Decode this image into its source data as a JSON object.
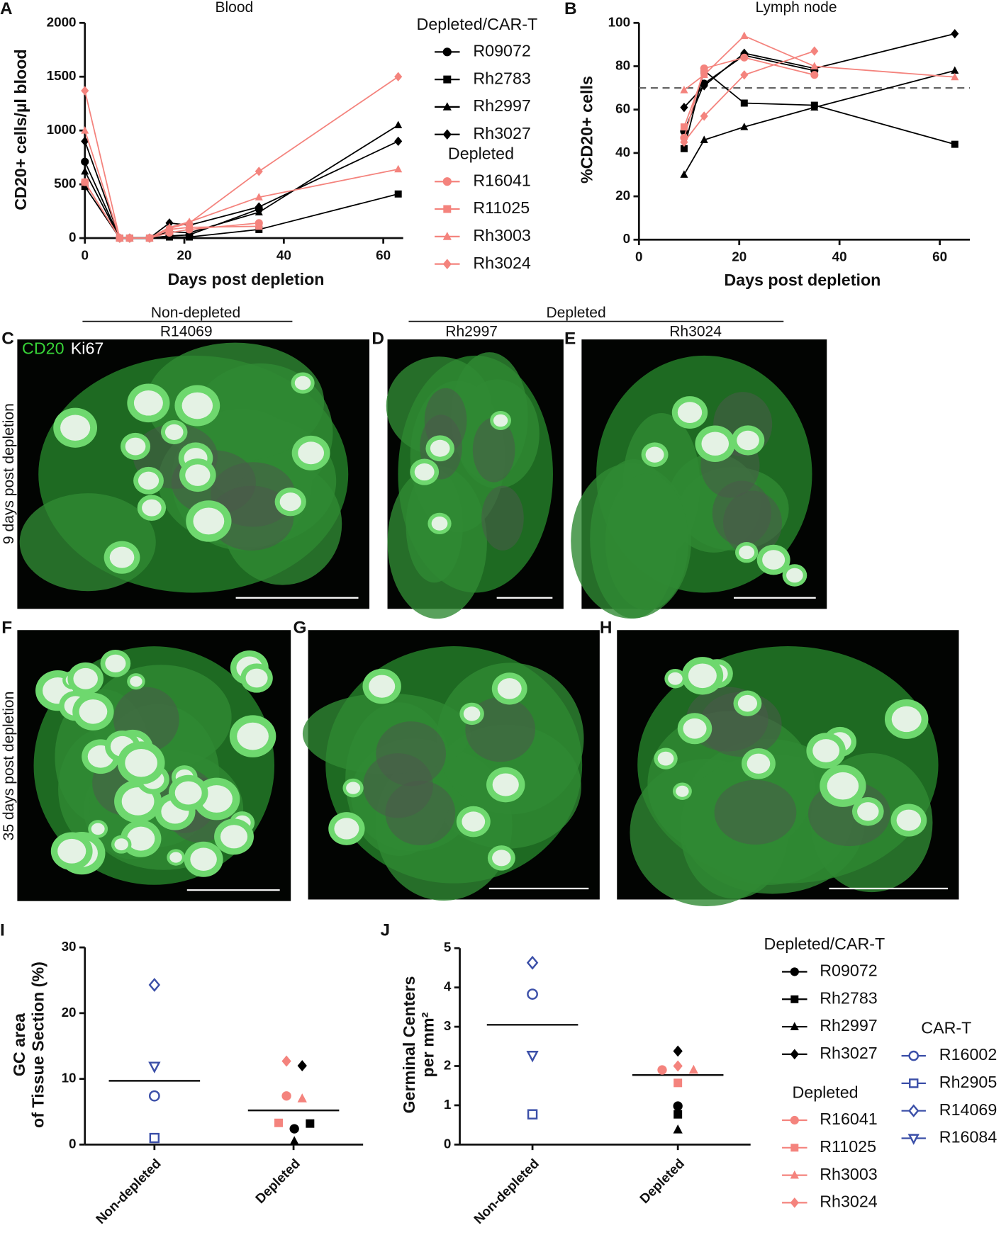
{
  "chart_data": [
    {
      "type": "line",
      "label": "A",
      "title": "Blood",
      "x_label": "Days post depletion",
      "y_label": "CD20+ cells/µl blood",
      "x": [
        0,
        7,
        9,
        13,
        17,
        21,
        35,
        63
      ],
      "xlim": [
        0,
        64
      ],
      "xticks": [
        0,
        20,
        40,
        60
      ],
      "ylim": [
        0,
        2000
      ],
      "yticks": [
        0,
        500,
        1000,
        1500,
        2000
      ],
      "series_groups": [
        {
          "name": "Depleted/CAR-T",
          "series": [
            {
              "name": "R09072",
              "color": "#000000",
              "marker": "circle",
              "values": [
                710,
                0,
                0,
                0,
                20,
                30,
                270,
                null
              ]
            },
            {
              "name": "Rh2783",
              "color": "#000000",
              "marker": "square",
              "values": [
                480,
                0,
                0,
                0,
                10,
                10,
                80,
                410
              ]
            },
            {
              "name": "Rh2997",
              "color": "#000000",
              "marker": "triangle",
              "values": [
                620,
                0,
                0,
                0,
                60,
                50,
                240,
                1050
              ]
            },
            {
              "name": "Rh3027",
              "color": "#000000",
              "marker": "diamond",
              "values": [
                900,
                0,
                0,
                0,
                140,
                120,
                290,
                900
              ]
            }
          ]
        },
        {
          "name": "Depleted",
          "series": [
            {
              "name": "R16041",
              "color": "#f4837d",
              "marker": "circle",
              "values": [
                520,
                0,
                0,
                0,
                50,
                80,
                140,
                null
              ]
            },
            {
              "name": "R11025",
              "color": "#f4837d",
              "marker": "square",
              "values": [
                520,
                0,
                0,
                0,
                80,
                100,
                110,
                null
              ]
            },
            {
              "name": "Rh3003",
              "color": "#f4837d",
              "marker": "triangle",
              "values": [
                1000,
                0,
                0,
                0,
                100,
                150,
                380,
                640
              ]
            },
            {
              "name": "Rh3024",
              "color": "#f4837d",
              "marker": "diamond",
              "values": [
                1370,
                0,
                0,
                0,
                90,
                140,
                620,
                1500
              ]
            }
          ]
        }
      ]
    },
    {
      "type": "line",
      "label": "B",
      "title": "Lymph node",
      "x_label": "Days post depletion",
      "y_label": "%CD20+ cells",
      "x": [
        9,
        13,
        21,
        35,
        63
      ],
      "xlim": [
        0,
        66
      ],
      "xticks": [
        0,
        20,
        40,
        60
      ],
      "ylim": [
        0,
        100
      ],
      "yticks": [
        0,
        20,
        40,
        60,
        80,
        100
      ],
      "reference_line": 70,
      "series": [
        {
          "color": "#000000",
          "marker": "circle",
          "values": [
            50,
            72,
            85,
            78,
            null
          ]
        },
        {
          "color": "#000000",
          "marker": "square",
          "values": [
            42,
            78,
            63,
            62,
            44
          ]
        },
        {
          "color": "#000000",
          "marker": "triangle",
          "values": [
            30,
            46,
            52,
            61,
            78
          ]
        },
        {
          "color": "#000000",
          "marker": "diamond",
          "values": [
            61,
            71,
            86,
            79,
            95
          ]
        },
        {
          "color": "#f4837d",
          "marker": "circle",
          "values": [
            47,
            79,
            84,
            76,
            null
          ]
        },
        {
          "color": "#f4837d",
          "marker": "square",
          "values": [
            52,
            77,
            null,
            null,
            null
          ]
        },
        {
          "color": "#f4837d",
          "marker": "triangle",
          "values": [
            69,
            76,
            94,
            80,
            75
          ]
        },
        {
          "color": "#f4837d",
          "marker": "diamond",
          "values": [
            45,
            57,
            76,
            87,
            null
          ]
        }
      ]
    },
    {
      "type": "strip",
      "label": "I",
      "y_label": [
        "GC area",
        "of Tissue Section (%)"
      ],
      "categories": [
        "Non-depleted",
        "Depleted"
      ],
      "means": [
        9.7,
        5.2
      ],
      "ylim": [
        0,
        30
      ],
      "yticks": [
        0,
        10,
        20,
        30
      ],
      "series": [
        {
          "color": "#000000",
          "marker": "circle",
          "values": [
            null,
            2.4
          ]
        },
        {
          "color": "#000000",
          "marker": "square",
          "values": [
            null,
            3.2
          ]
        },
        {
          "color": "#000000",
          "marker": "triangle",
          "values": [
            null,
            0.5
          ]
        },
        {
          "color": "#000000",
          "marker": "diamond",
          "values": [
            null,
            12.0
          ]
        },
        {
          "color": "#f4837d",
          "marker": "circle",
          "values": [
            null,
            7.4
          ]
        },
        {
          "color": "#f4837d",
          "marker": "square",
          "values": [
            null,
            3.3
          ]
        },
        {
          "color": "#f4837d",
          "marker": "triangle",
          "values": [
            null,
            7.0
          ]
        },
        {
          "color": "#f4837d",
          "marker": "diamond",
          "values": [
            null,
            12.7
          ]
        },
        {
          "color": "#3b4fa8",
          "marker": "open-circle",
          "values": [
            7.4,
            null
          ]
        },
        {
          "color": "#3b4fa8",
          "marker": "open-square",
          "values": [
            1.0,
            null
          ]
        },
        {
          "color": "#3b4fa8",
          "marker": "open-diamond",
          "values": [
            24.3,
            null
          ]
        },
        {
          "color": "#3b4fa8",
          "marker": "open-triangle-down",
          "values": [
            11.9,
            null
          ]
        }
      ]
    },
    {
      "type": "strip",
      "label": "J",
      "y_label": [
        "Germinal Centers",
        "per mm²"
      ],
      "categories": [
        "Non-depleted",
        "Depleted"
      ],
      "means": [
        3.05,
        1.77
      ],
      "ylim": [
        0,
        5
      ],
      "yticks": [
        0,
        1,
        2,
        3,
        4,
        5
      ],
      "series_groups": [
        {
          "name": "Depleted/CAR-T",
          "series": [
            {
              "name": "R09072",
              "color": "#000000",
              "marker": "circle",
              "values": [
                null,
                0.98
              ]
            },
            {
              "name": "Rh2783",
              "color": "#000000",
              "marker": "square",
              "values": [
                null,
                0.77
              ]
            },
            {
              "name": "Rh2997",
              "color": "#000000",
              "marker": "triangle",
              "values": [
                null,
                0.38
              ]
            },
            {
              "name": "Rh3027",
              "color": "#000000",
              "marker": "diamond",
              "values": [
                null,
                2.38
              ]
            }
          ]
        },
        {
          "name": "Depleted",
          "series": [
            {
              "name": "R16041",
              "color": "#f4837d",
              "marker": "circle",
              "values": [
                null,
                1.9
              ]
            },
            {
              "name": "R11025",
              "color": "#f4837d",
              "marker": "square",
              "values": [
                null,
                1.57
              ]
            },
            {
              "name": "Rh3003",
              "color": "#f4837d",
              "marker": "triangle",
              "values": [
                null,
                1.9
              ]
            },
            {
              "name": "Rh3024",
              "color": "#f4837d",
              "marker": "diamond",
              "values": [
                null,
                2.0
              ]
            }
          ]
        },
        {
          "name": "CAR-T",
          "series": [
            {
              "name": "R16002",
              "color": "#3b4fa8",
              "marker": "open-circle",
              "values": [
                3.83,
                null
              ]
            },
            {
              "name": "Rh2905",
              "color": "#3b4fa8",
              "marker": "open-square",
              "values": [
                0.77,
                null
              ]
            },
            {
              "name": "R14069",
              "color": "#3b4fa8",
              "marker": "open-diamond",
              "values": [
                4.63,
                null
              ]
            },
            {
              "name": "R16084",
              "color": "#3b4fa8",
              "marker": "open-triangle-down",
              "values": [
                2.27,
                null
              ]
            }
          ]
        }
      ]
    }
  ],
  "images": {
    "group_headers": [
      "Non-depleted",
      "Depleted"
    ],
    "columns": [
      "R14069",
      "Rh2997",
      "Rh3024"
    ],
    "rows": [
      "9 days post depletion",
      "35 days post depletion"
    ],
    "stains": [
      "CD20",
      "Ki67"
    ],
    "panels": [
      "C",
      "D",
      "E",
      "F",
      "G",
      "H"
    ]
  }
}
